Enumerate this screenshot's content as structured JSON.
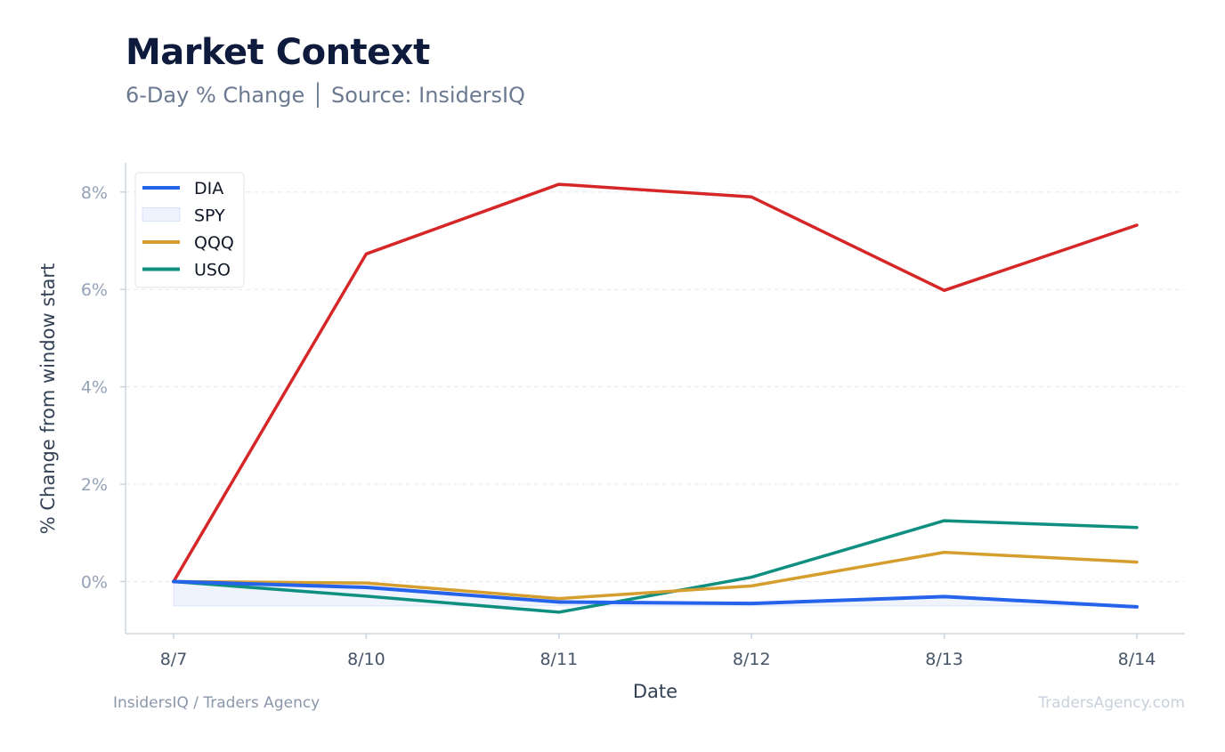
{
  "header": {
    "title": "Market Context",
    "subtitle": "6-Day % Change │ Source: InsidersIQ"
  },
  "footer": {
    "left": "InsidersIQ / Traders Agency",
    "right": "TradersAgency.com"
  },
  "chart_data": {
    "type": "line",
    "title": "Market Context",
    "subtitle": "6-Day % Change │ Source: InsidersIQ",
    "xlabel": "Date",
    "ylabel": "% Change from window start",
    "categories": [
      "8/7",
      "8/10",
      "8/11",
      "8/12",
      "8/13",
      "8/14"
    ],
    "ylim": [
      -1.07,
      8.6
    ],
    "yticks": [
      0,
      2,
      4,
      6,
      8
    ],
    "ytick_labels": [
      "0%",
      "2%",
      "4%",
      "6%",
      "8%"
    ],
    "grid": "horizontal dashed",
    "legend_position": "top-left",
    "series": [
      {
        "name": "DIA",
        "style": "line",
        "color": "#2563eb",
        "values": [
          0.0,
          -0.12,
          -0.42,
          -0.45,
          -0.31,
          -0.52
        ]
      },
      {
        "name": "SPY",
        "style": "area",
        "color": "#2563eb",
        "values": [
          -0.5,
          -0.5,
          -0.5,
          -0.5,
          -0.5,
          -0.5
        ]
      },
      {
        "name": "QQQ",
        "style": "line",
        "color": "#d69e2e",
        "values": [
          0.0,
          -0.03,
          -0.35,
          -0.09,
          0.6,
          0.4
        ]
      },
      {
        "name": "USO",
        "style": "line",
        "color": "#0f8f80",
        "values": [
          0.0,
          -0.3,
          -0.63,
          0.09,
          1.25,
          1.11
        ]
      },
      {
        "name": "",
        "style": "line",
        "color": "#d62728",
        "values": [
          0.0,
          6.73,
          8.16,
          7.9,
          5.98,
          7.32
        ]
      }
    ]
  }
}
